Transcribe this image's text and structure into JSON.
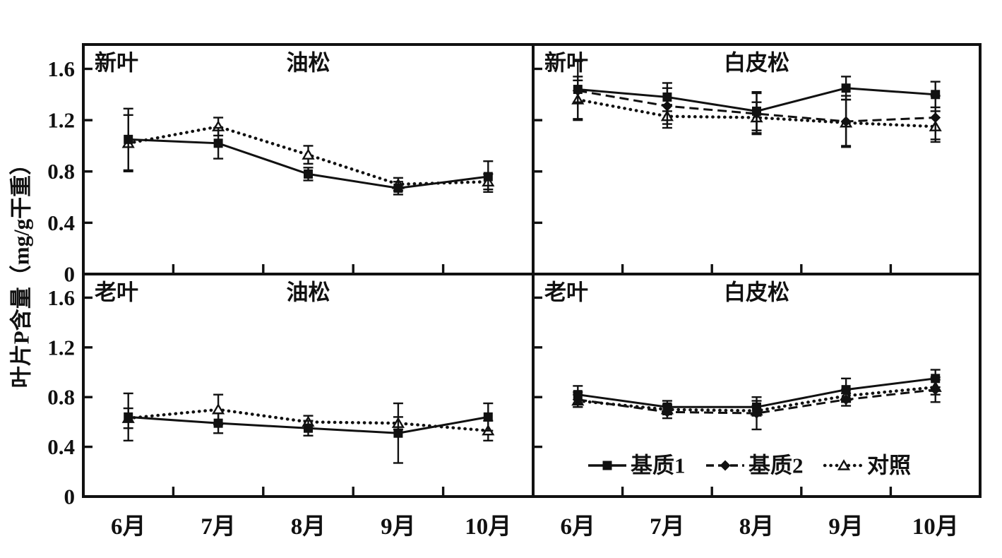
{
  "figure": {
    "background": "#ffffff",
    "ink": "#111111"
  },
  "chart_data": {
    "type": "line",
    "description": "2x2 grid of error-bar line charts: leaf P content by month, species and leaf age",
    "categories": [
      "6月",
      "7月",
      "8月",
      "9月",
      "10月"
    ],
    "ylabel": "叶片P含量（mg/g干重）",
    "yticks": [
      "0",
      "0.4",
      "0.8",
      "1.2",
      "1.6"
    ],
    "ytick_values": [
      0,
      0.4,
      0.8,
      1.2,
      1.6
    ],
    "ylim": [
      0,
      1.79
    ],
    "grid": false,
    "legend_position": "inside bottom-right panel",
    "legend": [
      {
        "name": "基质1",
        "key": "substrate-1",
        "style": "solid",
        "marker": "square"
      },
      {
        "name": "基质2",
        "key": "substrate-2",
        "style": "dashed",
        "marker": "diamond"
      },
      {
        "name": "对照",
        "key": "control",
        "style": "dotted",
        "marker": "triangle-open"
      }
    ],
    "panels": [
      {
        "row": 0,
        "col": 0,
        "corner_label": "新叶",
        "title": "油松",
        "series": [
          {
            "name": "基质1",
            "values": [
              1.05,
              1.02,
              0.78,
              0.67,
              0.76
            ],
            "errors": [
              0.24,
              0.12,
              0.05,
              0.05,
              0.12
            ]
          },
          {
            "name": "对照",
            "values": [
              1.02,
              1.15,
              0.93,
              0.7,
              0.72
            ],
            "errors": [
              0.22,
              0.07,
              0.07,
              0.05,
              0.06
            ]
          }
        ]
      },
      {
        "row": 0,
        "col": 1,
        "corner_label": "新叶",
        "title": "白皮松",
        "series": [
          {
            "name": "基质1",
            "values": [
              1.44,
              1.38,
              1.27,
              1.45,
              1.4
            ],
            "errors": [
              0.1,
              0.11,
              0.15,
              0.09,
              0.1
            ]
          },
          {
            "name": "基质2",
            "values": [
              1.43,
              1.31,
              1.25,
              1.19,
              1.22
            ],
            "errors": [
              0.23,
              0.14,
              0.16,
              0.2,
              0.17
            ]
          },
          {
            "name": "对照",
            "values": [
              1.36,
              1.23,
              1.22,
              1.18,
              1.15
            ],
            "errors": [
              0.15,
              0.09,
              0.12,
              0.18,
              0.12
            ]
          }
        ]
      },
      {
        "row": 1,
        "col": 0,
        "corner_label": "老叶",
        "title": "油松",
        "series": [
          {
            "name": "基质1",
            "values": [
              0.64,
              0.59,
              0.55,
              0.51,
              0.64
            ],
            "errors": [
              0.19,
              0.08,
              0.06,
              0.24,
              0.11
            ]
          },
          {
            "name": "对照",
            "values": [
              0.63,
              0.7,
              0.6,
              0.59,
              0.53
            ],
            "errors": [
              0.08,
              0.12,
              0.05,
              0.05,
              0.08
            ]
          }
        ]
      },
      {
        "row": 1,
        "col": 1,
        "corner_label": "老叶",
        "title": "白皮松",
        "series": [
          {
            "name": "基质1",
            "values": [
              0.82,
              0.72,
              0.72,
              0.86,
              0.95
            ],
            "errors": [
              0.07,
              0.05,
              0.05,
              0.09,
              0.07
            ]
          },
          {
            "name": "基质2",
            "values": [
              0.78,
              0.68,
              0.67,
              0.78,
              0.86
            ],
            "errors": [
              0.06,
              0.05,
              0.13,
              0.05,
              0.1
            ]
          },
          {
            "name": "对照",
            "values": [
              0.77,
              0.7,
              0.69,
              0.81,
              0.88
            ],
            "errors": [
              0.05,
              0.04,
              0.04,
              0.05,
              0.06
            ]
          }
        ]
      }
    ]
  }
}
